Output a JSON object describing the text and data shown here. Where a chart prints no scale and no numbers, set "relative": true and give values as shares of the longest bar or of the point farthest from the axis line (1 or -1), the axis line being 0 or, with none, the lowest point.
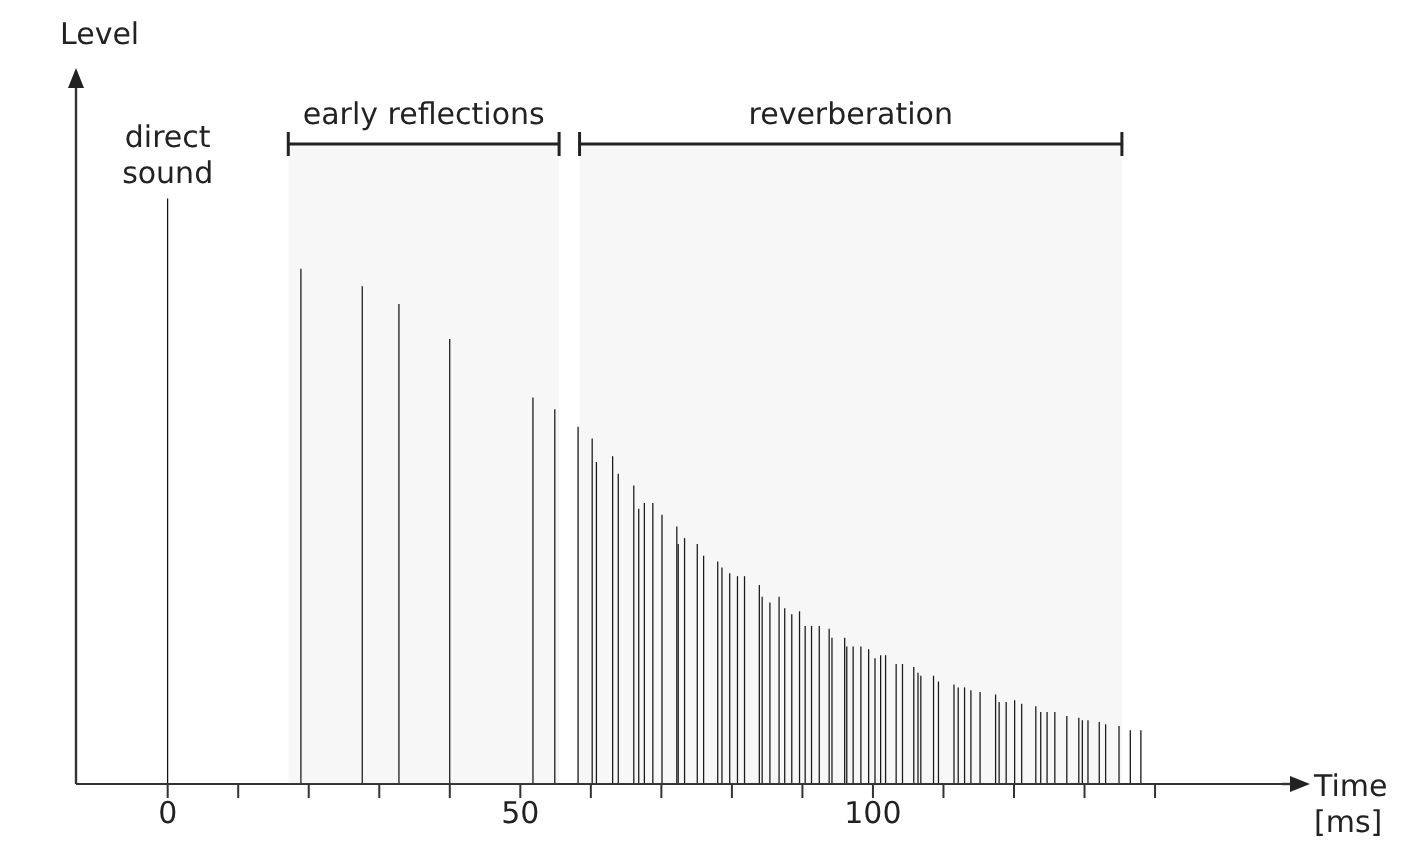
{
  "chart_data": {
    "type": "bar",
    "relative": true,
    "xlabel": "Time [ms]",
    "ylabel": "Level",
    "color": "#111111",
    "x": [
      0,
      18.9,
      27.6,
      32.8,
      40,
      51.8,
      54.9,
      58.2,
      60.2,
      60.8,
      63.1,
      63.9,
      66.1,
      66.8,
      67.6,
      68.8,
      70.1,
      72.2,
      72.4,
      73.3,
      75.1,
      76,
      78,
      78.6,
      79.7,
      80.8,
      81.8,
      83.9,
      84.3,
      85.4,
      86.7,
      87.5,
      88.5,
      89.6,
      90.4,
      91.3,
      92.4,
      93.8,
      94.2,
      96,
      96.3,
      97.2,
      98.3,
      99.4,
      100.3,
      101.1,
      101.8,
      103.3,
      104.2,
      105.8,
      106.4,
      106.8,
      108.6,
      109.3,
      111.5,
      112.1,
      113,
      113.9,
      115.2,
      117.4,
      117.9,
      118.9,
      120.1,
      121.1,
      123.1,
      123.8,
      124.7,
      125.8,
      127.5,
      129.2,
      129.7,
      130.5,
      132.1,
      133,
      134.9,
      136.5,
      138
    ],
    "values": [
      1,
      0.88,
      0.85,
      0.82,
      0.76,
      0.66,
      0.64,
      0.61,
      0.59,
      0.55,
      0.56,
      0.53,
      0.51,
      0.47,
      0.48,
      0.48,
      0.46,
      0.44,
      0.41,
      0.42,
      0.41,
      0.39,
      0.38,
      0.37,
      0.36,
      0.355,
      0.355,
      0.34,
      0.32,
      0.31,
      0.32,
      0.3,
      0.29,
      0.295,
      0.27,
      0.27,
      0.27,
      0.265,
      0.25,
      0.25,
      0.235,
      0.235,
      0.235,
      0.23,
      0.215,
      0.22,
      0.22,
      0.205,
      0.205,
      0.2,
      0.19,
      0.185,
      0.185,
      0.175,
      0.17,
      0.165,
      0.165,
      0.16,
      0.157,
      0.153,
      0.14,
      0.14,
      0.143,
      0.137,
      0.133,
      0.123,
      0.123,
      0.123,
      0.116,
      0.113,
      0.109,
      0.109,
      0.106,
      0.102,
      0.099,
      0.092,
      0.092
    ],
    "xlim": [
      -13,
      158
    ],
    "xticks": [
      0,
      {
        "value": 10,
        "label": null
      },
      {
        "value": 20,
        "label": null
      },
      {
        "value": 30,
        "label": null
      },
      {
        "value": 40,
        "label": null
      },
      50,
      {
        "value": 60,
        "label": null
      },
      {
        "value": 70,
        "label": null
      },
      {
        "value": 80,
        "label": null
      },
      {
        "value": 90,
        "label": null
      },
      100,
      {
        "value": 110,
        "label": null
      },
      {
        "value": 120,
        "label": null
      },
      {
        "value": 130,
        "label": null
      },
      {
        "value": 140,
        "label": null
      }
    ],
    "annotations": [
      {
        "text": "direct sound",
        "x": 0,
        "y": 1
      }
    ],
    "bands": [
      {
        "axis": "x",
        "from": 17.1,
        "to": 55.5,
        "label": "early reflections"
      },
      {
        "axis": "x",
        "from": 58.4,
        "to": 135.3,
        "label": "reverberation"
      }
    ]
  }
}
